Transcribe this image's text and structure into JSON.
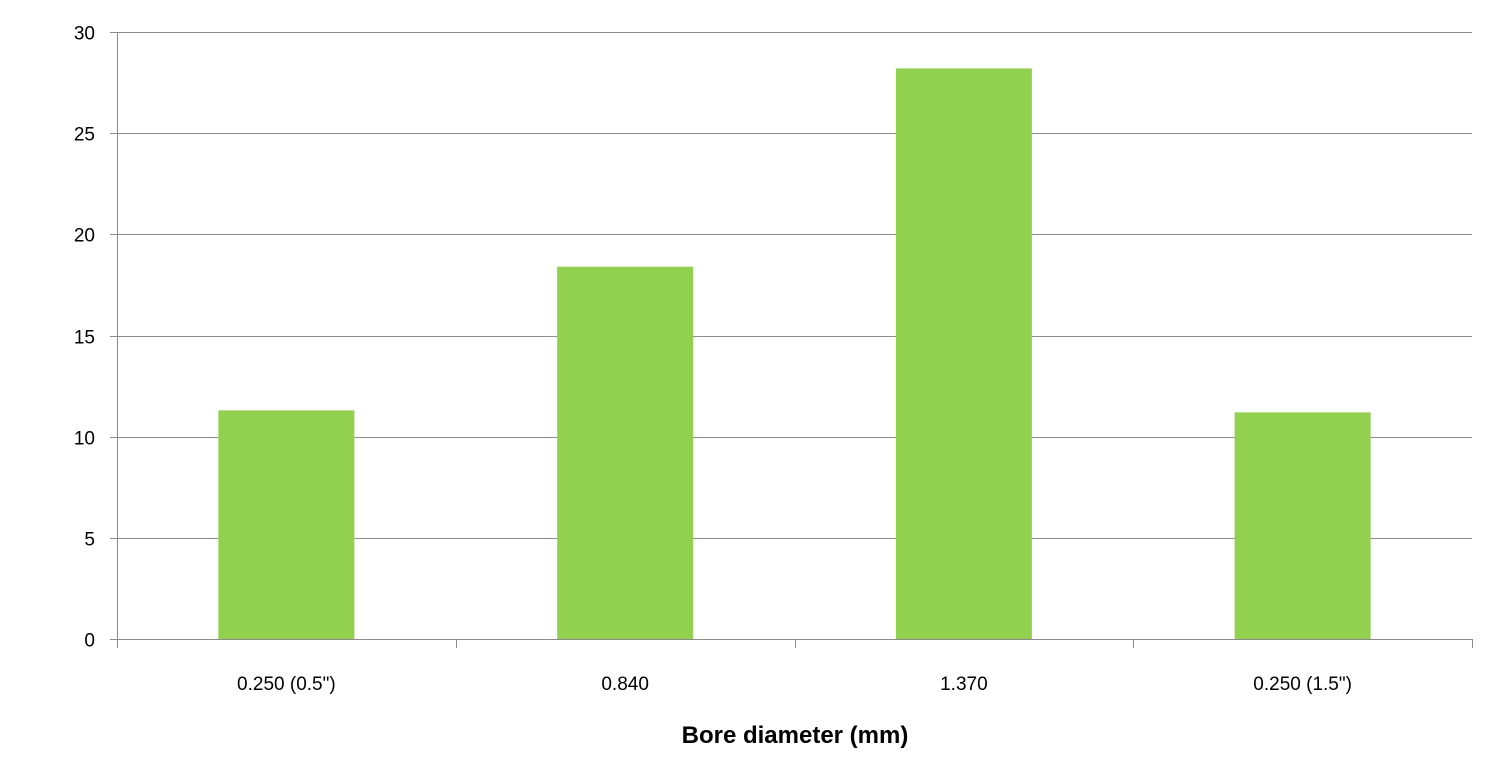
{
  "chart_data": {
    "type": "bar",
    "title": "",
    "xlabel": "Bore diameter (mm)",
    "ylabel": "",
    "categories": [
      "0.250 (0.5\")",
      "0.840",
      "1.370",
      "0.250 (1.5\")"
    ],
    "values": [
      11.3,
      18.4,
      28.2,
      11.2
    ],
    "ylim": [
      0,
      30
    ],
    "yticks": [
      0,
      5,
      10,
      15,
      20,
      25,
      30
    ],
    "grid": true,
    "legend": "none",
    "colors": {
      "bar": "#92d050",
      "grid": "#8c8c8c",
      "axis": "#8c8c8c",
      "text": "#000000"
    }
  }
}
